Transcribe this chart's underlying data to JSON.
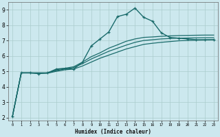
{
  "title": "",
  "xlabel": "Humidex (Indice chaleur)",
  "background_color": "#cce8ee",
  "grid_color": "#aacccc",
  "line_color": "#1a6b6b",
  "xlim": [
    -0.5,
    23.5
  ],
  "ylim": [
    1.8,
    9.5
  ],
  "yticks": [
    2,
    3,
    4,
    5,
    6,
    7,
    8,
    9
  ],
  "xticks": [
    0,
    1,
    2,
    3,
    4,
    5,
    6,
    7,
    8,
    9,
    10,
    11,
    12,
    13,
    14,
    15,
    16,
    17,
    18,
    19,
    20,
    21,
    22,
    23
  ],
  "series": [
    {
      "x": [
        0,
        1,
        2,
        3,
        4,
        5,
        6,
        7,
        8,
        9,
        10,
        11,
        12,
        13,
        14,
        15,
        16,
        17,
        18,
        19,
        20,
        21,
        22,
        23
      ],
      "y": [
        2.1,
        4.9,
        4.9,
        4.85,
        4.9,
        5.15,
        5.2,
        5.15,
        5.6,
        6.65,
        7.1,
        7.55,
        8.55,
        8.7,
        9.1,
        8.5,
        8.25,
        7.5,
        7.2,
        7.15,
        7.1,
        7.05,
        7.05,
        7.05
      ],
      "marker": true,
      "linewidth": 1.0
    },
    {
      "x": [
        0,
        1,
        2,
        3,
        4,
        5,
        6,
        7,
        8,
        9,
        10,
        11,
        12,
        13,
        14,
        15,
        16,
        17,
        18,
        19,
        20,
        21,
        22,
        23
      ],
      "y": [
        2.1,
        4.9,
        4.9,
        4.88,
        4.88,
        5.0,
        5.1,
        5.15,
        5.35,
        5.6,
        5.85,
        6.05,
        6.25,
        6.45,
        6.6,
        6.75,
        6.82,
        6.88,
        6.93,
        6.98,
        7.0,
        7.02,
        7.03,
        7.05
      ],
      "marker": false,
      "linewidth": 0.9
    },
    {
      "x": [
        0,
        1,
        2,
        3,
        4,
        5,
        6,
        7,
        8,
        9,
        10,
        11,
        12,
        13,
        14,
        15,
        16,
        17,
        18,
        19,
        20,
        21,
        22,
        23
      ],
      "y": [
        2.1,
        4.9,
        4.9,
        4.9,
        4.9,
        5.05,
        5.15,
        5.25,
        5.5,
        5.8,
        6.05,
        6.3,
        6.5,
        6.7,
        6.88,
        7.0,
        7.05,
        7.1,
        7.13,
        7.15,
        7.16,
        7.17,
        7.18,
        7.18
      ],
      "marker": false,
      "linewidth": 0.9
    },
    {
      "x": [
        0,
        1,
        2,
        3,
        4,
        5,
        6,
        7,
        8,
        9,
        10,
        11,
        12,
        13,
        14,
        15,
        16,
        17,
        18,
        19,
        20,
        21,
        22,
        23
      ],
      "y": [
        2.1,
        4.9,
        4.9,
        4.9,
        4.9,
        5.1,
        5.2,
        5.3,
        5.6,
        5.95,
        6.2,
        6.5,
        6.72,
        6.95,
        7.1,
        7.2,
        7.23,
        7.27,
        7.3,
        7.32,
        7.33,
        7.34,
        7.35,
        7.35
      ],
      "marker": false,
      "linewidth": 0.9
    }
  ]
}
